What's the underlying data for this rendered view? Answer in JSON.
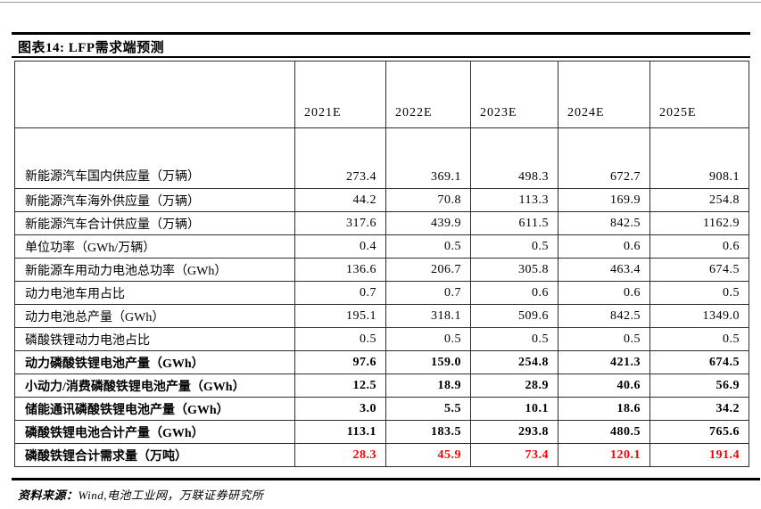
{
  "figure": {
    "title": "图表14: LFP需求端预测",
    "source": {
      "label": "资料来源：",
      "text": "Wind,电池工业网，万联证券研究所"
    }
  },
  "colors": {
    "highlight_red": "#fe0000",
    "rule_black": "#000000",
    "cell_border": "#2f2f2f"
  },
  "chart_data": {
    "type": "table",
    "title": "图表14: LFP需求端预测",
    "columns": [
      "",
      "2021E",
      "2022E",
      "2023E",
      "2024E",
      "2025E"
    ],
    "rows": [
      {
        "label": "新能源汽车国内供应量（万辆）",
        "values": [
          "273.4",
          "369.1",
          "498.3",
          "672.7",
          "908.1"
        ],
        "bold": false,
        "red": false
      },
      {
        "label": "新能源汽车海外供应量（万辆）",
        "values": [
          "44.2",
          "70.8",
          "113.3",
          "169.9",
          "254.8"
        ],
        "bold": false,
        "red": false
      },
      {
        "label": "新能源汽车合计供应量（万辆）",
        "values": [
          "317.6",
          "439.9",
          "611.5",
          "842.5",
          "1162.9"
        ],
        "bold": false,
        "red": false
      },
      {
        "label": "单位功率（GWh/万辆）",
        "values": [
          "0.4",
          "0.5",
          "0.5",
          "0.6",
          "0.6"
        ],
        "bold": false,
        "red": false
      },
      {
        "label": "新能源车用动力电池总功率（GWh）",
        "values": [
          "136.6",
          "206.7",
          "305.8",
          "463.4",
          "674.5"
        ],
        "bold": false,
        "red": false
      },
      {
        "label": "动力电池车用占比",
        "values": [
          "0.7",
          "0.7",
          "0.6",
          "0.6",
          "0.5"
        ],
        "bold": false,
        "red": false
      },
      {
        "label": "动力电池总产量（GWh）",
        "values": [
          "195.1",
          "318.1",
          "509.6",
          "842.5",
          "1349.0"
        ],
        "bold": false,
        "red": false
      },
      {
        "label": "磷酸铁锂动力电池占比",
        "values": [
          "0.5",
          "0.5",
          "0.5",
          "0.5",
          "0.5"
        ],
        "bold": false,
        "red": false
      },
      {
        "label": "动力磷酸铁锂电池产量（GWh）",
        "values": [
          "97.6",
          "159.0",
          "254.8",
          "421.3",
          "674.5"
        ],
        "bold": true,
        "red": false
      },
      {
        "label": "小动力/消费磷酸铁锂电池产量（GWh）",
        "values": [
          "12.5",
          "18.9",
          "28.9",
          "40.6",
          "56.9"
        ],
        "bold": true,
        "red": false
      },
      {
        "label": "储能通讯磷酸铁锂电池产量（GWh）",
        "values": [
          "3.0",
          "5.5",
          "10.1",
          "18.6",
          "34.2"
        ],
        "bold": true,
        "red": false
      },
      {
        "label": "磷酸铁锂电池合计产量（GWh）",
        "values": [
          "113.1",
          "183.5",
          "293.8",
          "480.5",
          "765.6"
        ],
        "bold": true,
        "red": false
      },
      {
        "label": "磷酸铁锂合计需求量（万吨）",
        "values": [
          "28.3",
          "45.9",
          "73.4",
          "120.1",
          "191.4"
        ],
        "bold": true,
        "red": true
      }
    ]
  }
}
